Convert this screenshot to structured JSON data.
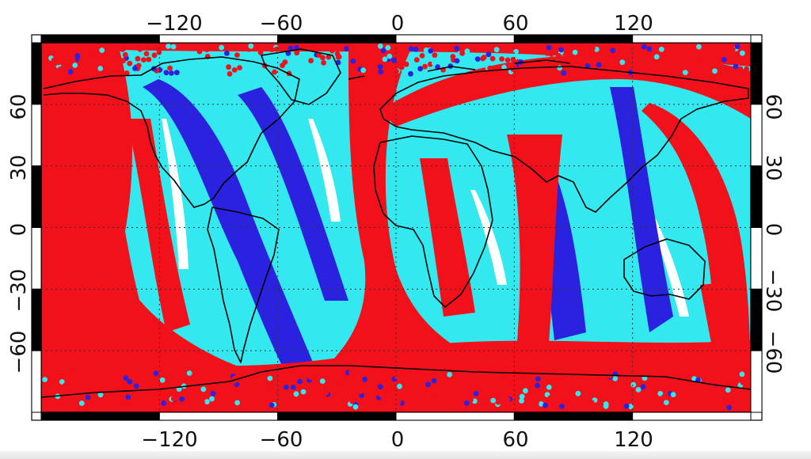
{
  "map": {
    "projection": "equirectangular",
    "lon_range": [
      -180,
      180
    ],
    "lat_range": [
      -90,
      90
    ],
    "graticule_style": "dotted",
    "coastlines": "black",
    "lon_ticks": [
      -120,
      -60,
      0,
      60,
      120
    ],
    "lat_ticks": [
      60,
      30,
      0,
      -30,
      -60
    ],
    "lon_tick_labels": [
      "−120",
      "−60",
      "0",
      "60",
      "120"
    ],
    "lat_tick_labels": [
      "60",
      "30",
      "0",
      "−30",
      "−60"
    ]
  },
  "colors": {
    "dark_blue_swath": "#2b22e0",
    "cyan_swath": "#33e8ef",
    "red_swath": "#f2101a",
    "coastline": "#000000",
    "frame": "#000000"
  },
  "swath_layers": [
    {
      "color_key": "cyan_swath",
      "description_tag": "cyan"
    },
    {
      "color_key": "dark_blue_swath",
      "description_tag": "blue"
    },
    {
      "color_key": "red_swath",
      "description_tag": "red"
    }
  ],
  "chart_data": {
    "type": "scatter",
    "title": "",
    "xlabel": "",
    "ylabel": "",
    "xlim": [
      -180,
      180
    ],
    "ylim": [
      -90,
      90
    ],
    "grid": true,
    "x_ticks": [
      -120,
      -60,
      0,
      60,
      120
    ],
    "y_ticks": [
      -60,
      -30,
      0,
      30,
      60
    ],
    "series": [
      {
        "color": "#33e8ef",
        "values": []
      },
      {
        "color": "#2b22e0",
        "values": []
      },
      {
        "color": "#f2101a",
        "values": []
      }
    ]
  }
}
